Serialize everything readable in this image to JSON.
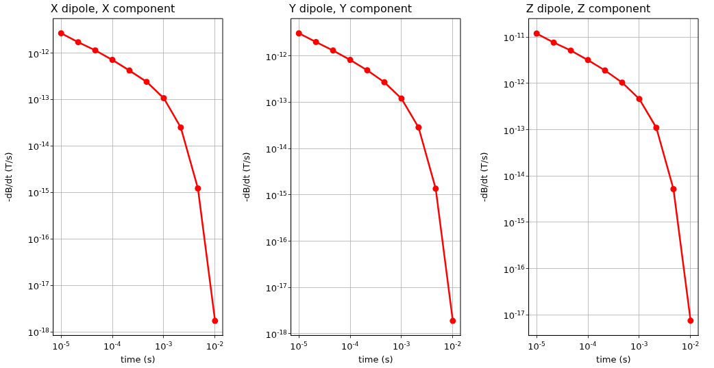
{
  "chart_data": [
    {
      "type": "line",
      "title": "X dipole, X component",
      "xlabel": "time (s)",
      "ylabel": "-dB/dt (T/s)",
      "log": "xy",
      "grid": true,
      "marker": "circle",
      "line_style": "solid",
      "x": [
        1e-05,
        2.15e-05,
        4.64e-05,
        0.0001,
        0.000215,
        0.000464,
        0.001,
        0.00215,
        0.00464,
        0.01
      ],
      "series": [
        {
          "color": "#ff0000",
          "values": [
            2.66e-12,
            1.71e-12,
            1.14e-12,
            7.1e-13,
            4.2e-13,
            2.4e-13,
            1.07e-13,
            2.5e-14,
            1.22e-15,
            1.73e-18
          ]
        }
      ],
      "xlim": [
        7e-06,
        0.0141
      ],
      "ylim": [
        8.4e-19,
        5.5e-12
      ],
      "xticks": [
        {
          "value": 1e-05,
          "label": "10$^{-5}$"
        },
        {
          "value": 0.0001,
          "label": "10$^{-4}$"
        },
        {
          "value": 0.001,
          "label": "10$^{-3}$"
        },
        {
          "value": 0.01,
          "label": "10$^{-2}$"
        }
      ],
      "yticks": [
        {
          "value": 1e-18,
          "label": "10$^{-18}$"
        },
        {
          "value": 1e-17,
          "label": "10$^{-17}$"
        },
        {
          "value": 1e-16,
          "label": "10$^{-16}$"
        },
        {
          "value": 1e-15,
          "label": "10$^{-15}$"
        },
        {
          "value": 1e-14,
          "label": "10$^{-14}$"
        },
        {
          "value": 1e-13,
          "label": "10$^{-13}$"
        },
        {
          "value": 1e-12,
          "label": "10$^{-12}$"
        }
      ]
    },
    {
      "type": "line",
      "title": "Y dipole, Y component",
      "xlabel": "time (s)",
      "ylabel": "-dB/dt (T/s)",
      "log": "xy",
      "grid": true,
      "marker": "circle",
      "line_style": "solid",
      "x": [
        1e-05,
        2.15e-05,
        4.64e-05,
        0.0001,
        0.000215,
        0.000464,
        0.001,
        0.00215,
        0.00464,
        0.01
      ],
      "series": [
        {
          "color": "#ff0000",
          "values": [
            3.08e-12,
            2e-12,
            1.31e-12,
            8.2e-13,
            4.9e-13,
            2.7e-13,
            1.2e-13,
            2.86e-14,
            1.36e-15,
            1.9e-18
          ]
        }
      ],
      "xlim": [
        7e-06,
        0.0141
      ],
      "ylim": [
        9.2e-19,
        6.4e-12
      ],
      "xticks": [
        {
          "value": 1e-05,
          "label": "10$^{-5}$"
        },
        {
          "value": 0.0001,
          "label": "10$^{-4}$"
        },
        {
          "value": 0.001,
          "label": "10$^{-3}$"
        },
        {
          "value": 0.01,
          "label": "10$^{-2}$"
        }
      ],
      "yticks": [
        {
          "value": 1e-18,
          "label": "10$^{-18}$"
        },
        {
          "value": 1e-17,
          "label": "10$^{-17}$"
        },
        {
          "value": 1e-16,
          "label": "10$^{-16}$"
        },
        {
          "value": 1e-15,
          "label": "10$^{-15}$"
        },
        {
          "value": 1e-14,
          "label": "10$^{-14}$"
        },
        {
          "value": 1e-13,
          "label": "10$^{-13}$"
        },
        {
          "value": 1e-12,
          "label": "10$^{-12}$"
        }
      ]
    },
    {
      "type": "line",
      "title": "Z dipole, Z component",
      "xlabel": "time (s)",
      "ylabel": "-dB/dt (T/s)",
      "log": "xy",
      "grid": true,
      "marker": "circle",
      "line_style": "solid",
      "x": [
        1e-05,
        2.15e-05,
        4.64e-05,
        0.0001,
        0.000215,
        0.000464,
        0.001,
        0.00215,
        0.00464,
        0.01
      ],
      "series": [
        {
          "color": "#ff0000",
          "values": [
            1.19e-11,
            7.6e-12,
            5.1e-12,
            3.18e-12,
            1.9e-12,
            1.04e-12,
            4.6e-13,
            1.1e-13,
            5.2e-15,
            7.5e-18
          ]
        }
      ],
      "xlim": [
        7e-06,
        0.0141
      ],
      "ylim": [
        3.6e-18,
        2.5e-11
      ],
      "xticks": [
        {
          "value": 1e-05,
          "label": "10$^{-5}$"
        },
        {
          "value": 0.0001,
          "label": "10$^{-4}$"
        },
        {
          "value": 0.001,
          "label": "10$^{-3}$"
        },
        {
          "value": 0.01,
          "label": "10$^{-2}$"
        }
      ],
      "yticks": [
        {
          "value": 1e-17,
          "label": "10$^{-17}$"
        },
        {
          "value": 1e-16,
          "label": "10$^{-16}$"
        },
        {
          "value": 1e-15,
          "label": "10$^{-15}$"
        },
        {
          "value": 1e-14,
          "label": "10$^{-14}$"
        },
        {
          "value": 1e-13,
          "label": "10$^{-13}$"
        },
        {
          "value": 1e-12,
          "label": "10$^{-12}$"
        },
        {
          "value": 1e-11,
          "label": "10$^{-11}$"
        }
      ]
    }
  ]
}
